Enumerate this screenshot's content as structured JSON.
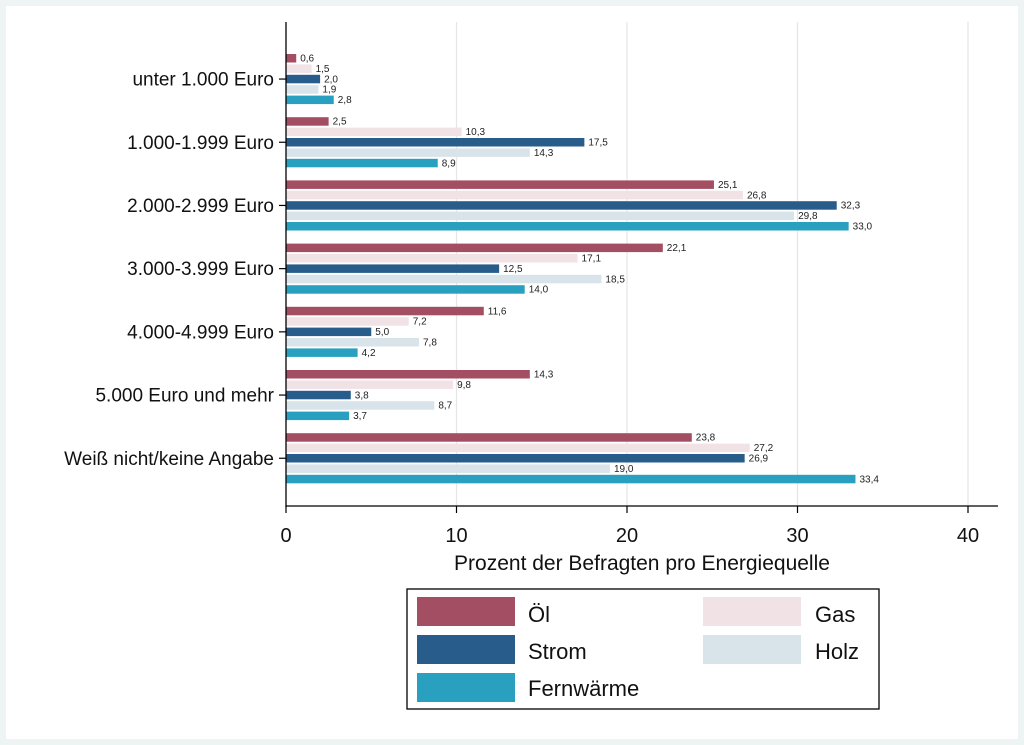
{
  "chart_data": {
    "type": "bar",
    "orientation": "horizontal",
    "categories": [
      "unter 1.000 Euro",
      "1.000-1.999 Euro",
      "2.000-2.999 Euro",
      "3.000-3.999 Euro",
      "4.000-4.999 Euro",
      "5.000 Euro und mehr",
      "Weiß nicht/keine Angabe"
    ],
    "series": [
      {
        "name": "Öl",
        "color": "#a34e62",
        "values": [
          0.6,
          2.5,
          25.1,
          22.1,
          11.6,
          14.3,
          23.8
        ],
        "labels": [
          "0,6",
          "2,5",
          "25,1",
          "22,1",
          "11,6",
          "14,3",
          "23,8"
        ]
      },
      {
        "name": "Gas",
        "color": "#f1e2e5",
        "values": [
          1.5,
          10.3,
          26.8,
          17.1,
          7.2,
          9.8,
          27.2
        ],
        "labels": [
          "1,5",
          "10,3",
          "26,8",
          "17,1",
          "7,2",
          "9,8",
          "27,2"
        ]
      },
      {
        "name": "Strom",
        "color": "#285d8b",
        "values": [
          2.0,
          17.5,
          32.3,
          12.5,
          5.0,
          3.8,
          26.9
        ],
        "labels": [
          "2,0",
          "17,5",
          "32,3",
          "12,5",
          "5,0",
          "3,8",
          "26,9"
        ]
      },
      {
        "name": "Holz",
        "color": "#d8e3ea",
        "values": [
          1.9,
          14.3,
          29.8,
          18.5,
          7.8,
          8.7,
          19.0
        ],
        "labels": [
          "1,9",
          "14,3",
          "29,8",
          "18,5",
          "7,8",
          "8,7",
          "19,0"
        ]
      },
      {
        "name": "Fernwärme",
        "color": "#2aa0c0",
        "values": [
          2.8,
          8.9,
          33.0,
          14.0,
          4.2,
          3.7,
          33.4
        ],
        "labels": [
          "2,8",
          "8,9",
          "33,0",
          "14,0",
          "4,2",
          "3,7",
          "33,4"
        ]
      }
    ],
    "xlabel": "Prozent der Befragten pro Energiequelle",
    "xlim": [
      0,
      40
    ],
    "xticks": [
      "0",
      "10",
      "20",
      "30",
      "40"
    ],
    "grid": true,
    "legend_position": "bottom"
  }
}
